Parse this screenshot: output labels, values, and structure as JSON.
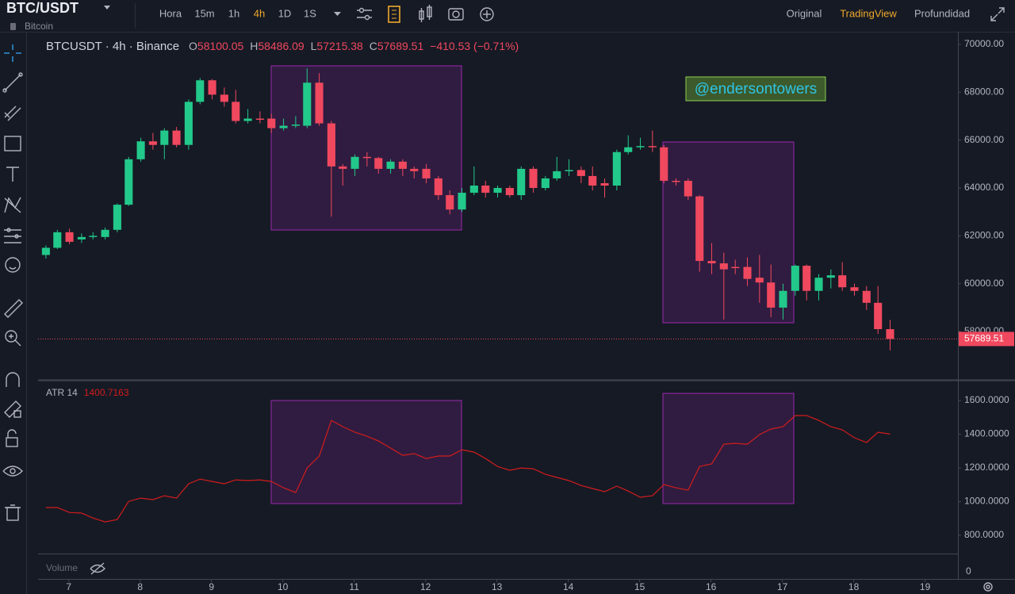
{
  "toolbar": {
    "symbol": "BTC/USDT",
    "subtitle": "Bitcoin",
    "intervals": [
      "Hora",
      "15m",
      "1h",
      "4h",
      "1D",
      "1S"
    ],
    "active_interval_index": 3,
    "views": [
      "Original",
      "TradingView",
      "Profundidad"
    ],
    "active_view_index": 1
  },
  "chart_data": [
    {
      "type": "candlestick",
      "title": "BTCUSDT · 4h · Binance",
      "legend_keys": [
        "O",
        "H",
        "L",
        "C"
      ],
      "change_label": "−410.53 (−0.71%)",
      "annotation": "@endersontowers",
      "up_color": "#22c98a",
      "down_color": "#f0485e",
      "x": [
        6.68,
        6.84,
        7.01,
        7.18,
        7.34,
        7.51,
        7.68,
        7.84,
        8.01,
        8.18,
        8.34,
        8.51,
        8.68,
        8.84,
        9.01,
        9.18,
        9.34,
        9.51,
        9.68,
        9.84,
        10.01,
        10.18,
        10.34,
        10.51,
        10.68,
        10.84,
        11.01,
        11.18,
        11.34,
        11.51,
        11.68,
        11.84,
        12.01,
        12.18,
        12.34,
        12.51,
        12.68,
        12.84,
        13.01,
        13.18,
        13.34,
        13.51,
        13.68,
        13.84,
        14.01,
        14.18,
        14.34,
        14.51,
        14.68,
        14.84,
        15.01,
        15.18,
        15.34,
        15.51,
        15.68,
        15.84,
        16.01,
        16.18,
        16.34,
        16.51,
        16.68,
        16.84,
        17.01,
        17.18,
        17.34,
        17.51,
        17.68,
        17.84,
        18.01,
        18.18,
        18.34,
        18.51
      ],
      "open": [
        61200,
        61500,
        62150,
        61850,
        61950,
        61950,
        62250,
        63300,
        65200,
        65950,
        65800,
        66400,
        65800,
        67600,
        68500,
        67900,
        67600,
        66800,
        66900,
        66900,
        66500,
        66600,
        66600,
        68400,
        66700,
        64900,
        64800,
        65300,
        65250,
        64800,
        65100,
        64800,
        64800,
        64400,
        63700,
        63100,
        63800,
        64100,
        63800,
        64000,
        63700,
        64800,
        64000,
        64400,
        64700,
        64750,
        64500,
        64200,
        64100,
        65500,
        65700,
        65750,
        65700,
        64300,
        64300,
        63650,
        60950,
        60850,
        60700,
        60700,
        60250,
        60050,
        59000,
        59700,
        60750,
        59700,
        60250,
        60350,
        59850,
        59700,
        59200,
        58100.05
      ],
      "high": [
        61600,
        62250,
        62300,
        62100,
        62150,
        62350,
        63350,
        65300,
        66100,
        66300,
        66500,
        66550,
        67700,
        68600,
        68550,
        68200,
        68100,
        67300,
        67200,
        67100,
        66900,
        67000,
        69000,
        68800,
        66800,
        65000,
        65400,
        65500,
        65300,
        65200,
        65200,
        64900,
        65000,
        64500,
        63900,
        64000,
        64900,
        64300,
        64100,
        64100,
        64900,
        64900,
        64500,
        65300,
        65200,
        64900,
        64900,
        64400,
        65600,
        66200,
        66100,
        66400,
        65800,
        64400,
        64400,
        63700,
        61700,
        61300,
        61000,
        61100,
        61200,
        60800,
        60000,
        60800,
        60800,
        60400,
        60600,
        60900,
        60000,
        59900,
        59900,
        58486.09
      ],
      "low": [
        61050,
        61450,
        61650,
        61700,
        61850,
        61850,
        62150,
        63250,
        65100,
        65600,
        65200,
        65700,
        65600,
        67500,
        67700,
        67400,
        66700,
        66700,
        66700,
        66300,
        66400,
        66500,
        66500,
        66600,
        62800,
        64100,
        64500,
        64900,
        64600,
        64600,
        64500,
        64400,
        64200,
        63500,
        62900,
        63000,
        63700,
        63600,
        63600,
        63600,
        63500,
        63800,
        63900,
        64300,
        64500,
        64200,
        63900,
        63600,
        63900,
        65400,
        65600,
        65500,
        64200,
        64100,
        63500,
        60500,
        60400,
        58500,
        60400,
        59900,
        59200,
        58600,
        58500,
        59500,
        59300,
        59300,
        59800,
        59700,
        59500,
        58900,
        57900,
        57215.38
      ],
      "close": [
        61500,
        62150,
        61750,
        61950,
        62000,
        62250,
        63300,
        65200,
        65950,
        65800,
        66400,
        65800,
        67600,
        68500,
        67900,
        67600,
        66800,
        66900,
        66850,
        66500,
        66600,
        66650,
        68400,
        66700,
        64900,
        64800,
        65300,
        65250,
        64800,
        65100,
        64800,
        64700,
        64400,
        63700,
        63100,
        63800,
        64100,
        63800,
        64000,
        63700,
        64800,
        64000,
        64400,
        64700,
        64750,
        64500,
        64100,
        64100,
        65500,
        65700,
        65750,
        65700,
        64300,
        64250,
        63650,
        60950,
        60850,
        60600,
        60650,
        60200,
        60050,
        59000,
        59700,
        60750,
        59700,
        60250,
        60350,
        59850,
        59700,
        59200,
        58100.05,
        57689.51
      ],
      "xlim": [
        6.57,
        19.46
      ],
      "xticks": [
        7,
        8,
        9,
        10,
        11,
        12,
        13,
        14,
        15,
        16,
        17,
        18,
        19
      ],
      "ylim": [
        56013,
        70530
      ],
      "yticks": [
        {
          "value": 58000,
          "label": "58000.00"
        },
        {
          "value": 60000,
          "label": "60000.00"
        },
        {
          "value": 62000,
          "label": "62000.00"
        },
        {
          "value": 64000,
          "label": "64000.00"
        },
        {
          "value": 66000,
          "label": "66000.00"
        },
        {
          "value": 68000,
          "label": "68000.00"
        },
        {
          "value": 70000,
          "label": "70000.00"
        }
      ]
    },
    {
      "type": "line",
      "title": "ATR 14",
      "color": "#d21c1c",
      "x": [
        6.68,
        6.84,
        7.01,
        7.18,
        7.34,
        7.51,
        7.68,
        7.84,
        8.01,
        8.18,
        8.34,
        8.51,
        8.68,
        8.84,
        9.01,
        9.18,
        9.34,
        9.51,
        9.68,
        9.84,
        10.01,
        10.18,
        10.34,
        10.51,
        10.68,
        10.84,
        11.01,
        11.18,
        11.34,
        11.51,
        11.68,
        11.84,
        12.01,
        12.18,
        12.34,
        12.51,
        12.68,
        12.84,
        13.01,
        13.18,
        13.34,
        13.51,
        13.68,
        13.84,
        14.01,
        14.18,
        14.34,
        14.51,
        14.68,
        14.84,
        15.01,
        15.18,
        15.34,
        15.51,
        15.68,
        15.84,
        16.01,
        16.18,
        16.34,
        16.51,
        16.68,
        16.84,
        17.01,
        17.18,
        17.34,
        17.51,
        17.68,
        17.84,
        18.01,
        18.18,
        18.34,
        18.51
      ],
      "values": [
        965,
        965,
        936,
        932,
        903,
        880,
        894,
        1002,
        1021,
        1012,
        1035,
        1021,
        1106,
        1134,
        1120,
        1106,
        1129,
        1125,
        1129,
        1120,
        1082,
        1054,
        1200,
        1271,
        1482,
        1445,
        1412,
        1388,
        1360,
        1318,
        1275,
        1285,
        1256,
        1271,
        1271,
        1308,
        1294,
        1256,
        1209,
        1186,
        1200,
        1195,
        1162,
        1144,
        1125,
        1096,
        1078,
        1059,
        1092,
        1063,
        1026,
        1035,
        1101,
        1082,
        1068,
        1209,
        1224,
        1341,
        1346,
        1341,
        1398,
        1431,
        1445,
        1511,
        1511,
        1482,
        1445,
        1426,
        1379,
        1351,
        1412,
        1400.7163
      ],
      "xlim": [
        6.57,
        19.46
      ],
      "ylim": [
        692,
        1718
      ],
      "yticks": [
        {
          "value": 800,
          "label": "800.0000"
        },
        {
          "value": 1000,
          "label": "1000.0000"
        },
        {
          "value": 1200,
          "label": "1200.0000"
        },
        {
          "value": 1400,
          "label": "1400.0000"
        },
        {
          "value": 1600,
          "label": "1600.0000"
        }
      ]
    }
  ],
  "volume": {
    "label": "Volume",
    "axis_label": "0"
  }
}
